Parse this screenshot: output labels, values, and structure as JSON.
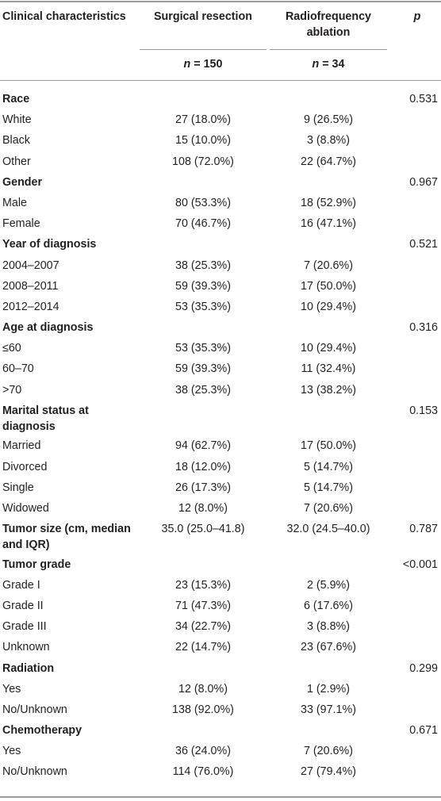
{
  "header": {
    "col1": "Clinical characteristics",
    "col2": "Surgical resection",
    "col3": "Radiofrequency ablation",
    "col4": "p",
    "n_label": "n",
    "n2": "= 150",
    "n3": "= 34"
  },
  "rows": [
    {
      "kind": "cat",
      "label": "Race",
      "c2": "",
      "c3": "",
      "p": "0.531"
    },
    {
      "kind": "item",
      "label": "White",
      "c2": "27 (18.0%)",
      "c3": "9 (26.5%)",
      "p": ""
    },
    {
      "kind": "item",
      "label": "Black",
      "c2": "15 (10.0%)",
      "c3": "3 (8.8%)",
      "p": ""
    },
    {
      "kind": "item",
      "label": "Other",
      "c2": "108 (72.0%)",
      "c3": "22 (64.7%)",
      "p": ""
    },
    {
      "kind": "cat",
      "label": "Gender",
      "c2": "",
      "c3": "",
      "p": "0.967"
    },
    {
      "kind": "item",
      "label": "Male",
      "c2": "80 (53.3%)",
      "c3": "18 (52.9%)",
      "p": ""
    },
    {
      "kind": "item",
      "label": "Female",
      "c2": "70 (46.7%)",
      "c3": "16 (47.1%)",
      "p": ""
    },
    {
      "kind": "cat",
      "label": "Year of diagnosis",
      "c2": "",
      "c3": "",
      "p": "0.521"
    },
    {
      "kind": "item",
      "label": "2004–2007",
      "c2": "38 (25.3%)",
      "c3": "7 (20.6%)",
      "p": ""
    },
    {
      "kind": "item",
      "label": "2008–2011",
      "c2": "59 (39.3%)",
      "c3": "17 (50.0%)",
      "p": ""
    },
    {
      "kind": "item",
      "label": "2012–2014",
      "c2": "53 (35.3%)",
      "c3": "10 (29.4%)",
      "p": ""
    },
    {
      "kind": "cat",
      "label": "Age at diagnosis",
      "c2": "",
      "c3": "",
      "p": "0.316"
    },
    {
      "kind": "item",
      "label": "≤60",
      "c2": "53 (35.3%)",
      "c3": "10 (29.4%)",
      "p": ""
    },
    {
      "kind": "item",
      "label": "60–70",
      "c2": "59 (39.3%)",
      "c3": "11 (32.4%)",
      "p": ""
    },
    {
      "kind": "item",
      "label": ">70",
      "c2": "38 (25.3%)",
      "c3": "13 (38.2%)",
      "p": ""
    },
    {
      "kind": "cat",
      "tall": true,
      "label": "Marital status at diagnosis",
      "c2": "",
      "c3": "",
      "p": "0.153"
    },
    {
      "kind": "item",
      "label": "Married",
      "c2": "94 (62.7%)",
      "c3": "17 (50.0%)",
      "p": ""
    },
    {
      "kind": "item",
      "label": "Divorced",
      "c2": "18 (12.0%)",
      "c3": "5 (14.7%)",
      "p": ""
    },
    {
      "kind": "item",
      "label": "Single",
      "c2": "26 (17.3%)",
      "c3": "5 (14.7%)",
      "p": ""
    },
    {
      "kind": "item",
      "label": "Widowed",
      "c2": "12 (8.0%)",
      "c3": "7 (20.6%)",
      "p": ""
    },
    {
      "kind": "cat",
      "tall": true,
      "label": "Tumor size (cm, median and IQR)",
      "c2": "35.0 (25.0–41.8)",
      "c3": "32.0 (24.5–40.0)",
      "p": "0.787"
    },
    {
      "kind": "cat",
      "label": "Tumor grade",
      "c2": "",
      "c3": "",
      "p": "<0.001"
    },
    {
      "kind": "item",
      "label": "Grade I",
      "c2": "23 (15.3%)",
      "c3": "2 (5.9%)",
      "p": ""
    },
    {
      "kind": "item",
      "label": "Grade II",
      "c2": "71 (47.3%)",
      "c3": "6 (17.6%)",
      "p": ""
    },
    {
      "kind": "item",
      "label": "Grade III",
      "c2": "34 (22.7%)",
      "c3": "3 (8.8%)",
      "p": ""
    },
    {
      "kind": "item",
      "label": "Unknown",
      "c2": "22 (14.7%)",
      "c3": "23 (67.6%)",
      "p": ""
    },
    {
      "kind": "cat",
      "label": "Radiation",
      "c2": "",
      "c3": "",
      "p": "0.299"
    },
    {
      "kind": "item",
      "label": "Yes",
      "c2": "12 (8.0%)",
      "c3": "1 (2.9%)",
      "p": ""
    },
    {
      "kind": "item",
      "label": "No/Unknown",
      "c2": "138 (92.0%)",
      "c3": "33 (97.1%)",
      "p": ""
    },
    {
      "kind": "cat",
      "label": "Chemotherapy",
      "c2": "",
      "c3": "",
      "p": "0.671"
    },
    {
      "kind": "item",
      "label": "Yes",
      "c2": "36 (24.0%)",
      "c3": "7 (20.6%)",
      "p": ""
    },
    {
      "kind": "item",
      "label": "No/Unknown",
      "c2": "114 (76.0%)",
      "c3": "27 (79.4%)",
      "p": ""
    }
  ]
}
